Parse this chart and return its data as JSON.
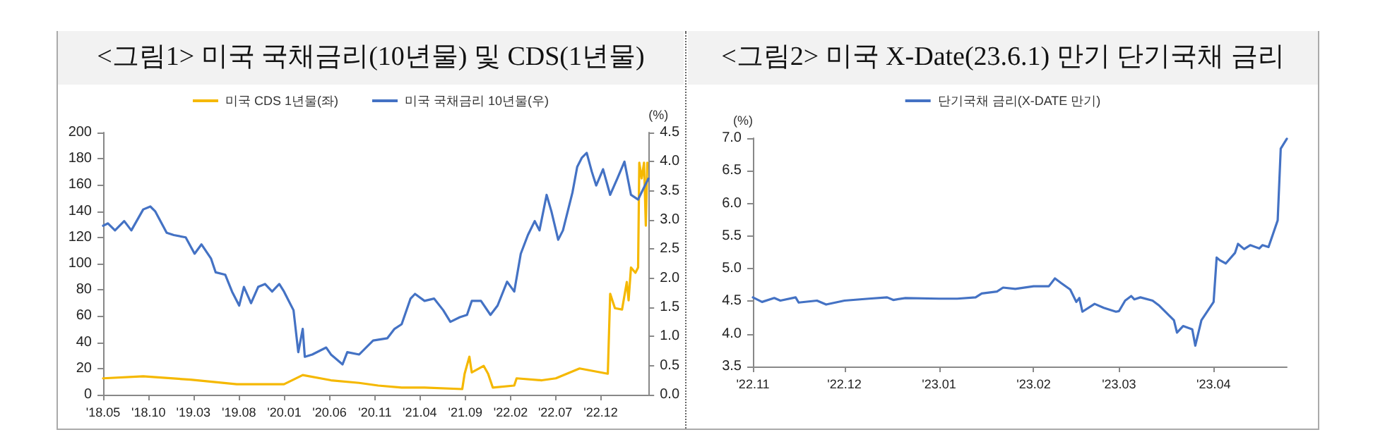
{
  "chart_data": [
    {
      "type": "line",
      "title": "<그림1> 미국 국채금리(10년물) 및 CDS(1년물)",
      "y2label": "(%)",
      "legend": "top",
      "marker": "none",
      "grid": false,
      "line_style": "solid",
      "xlim": [
        "2018-05-01",
        "2023-05-11"
      ],
      "xticks": [
        {
          "value": "2018-05-01",
          "label": "'18.05"
        },
        {
          "value": "2018-10-01",
          "label": "'18.10"
        },
        {
          "value": "2019-03-01",
          "label": "'19.03"
        },
        {
          "value": "2019-08-01",
          "label": "'19.08"
        },
        {
          "value": "2020-01-01",
          "label": "'20.01"
        },
        {
          "value": "2020-06-01",
          "label": "'20.06"
        },
        {
          "value": "2020-11-01",
          "label": "'20.11"
        },
        {
          "value": "2021-04-01",
          "label": "'21.04"
        },
        {
          "value": "2021-09-01",
          "label": "'21.09"
        },
        {
          "value": "2022-02-01",
          "label": "'22.02"
        },
        {
          "value": "2022-07-01",
          "label": "'22.07"
        },
        {
          "value": "2022-12-01",
          "label": "'22.12"
        }
      ],
      "ylim": [
        0,
        200
      ],
      "yticks": [
        0,
        20,
        40,
        60,
        80,
        100,
        120,
        140,
        160,
        180,
        200
      ],
      "y2lim": [
        0,
        4.5
      ],
      "y2ticks": [
        {
          "value": 0,
          "label": "0.0"
        },
        0.5,
        {
          "value": 1,
          "label": "1.0"
        },
        1.5,
        {
          "value": 2,
          "label": "2.0"
        },
        2.5,
        {
          "value": 3,
          "label": "3.0"
        },
        3.5,
        {
          "value": 4,
          "label": "4.0"
        },
        4.5
      ],
      "series": [
        {
          "name": "미국 CDS 1년물(좌)",
          "color": "#f5b800",
          "x": [
            "2018-05-01",
            "2018-09-13",
            "2019-02-19",
            "2019-07-25",
            "2019-12-31",
            "2020-03-03",
            "2020-06-06",
            "2020-09-09",
            "2020-11-12",
            "2021-01-30",
            "2021-04-17",
            "2021-08-22",
            "2021-08-30",
            "2021-09-15",
            "2021-09-23",
            "2021-11-02",
            "2021-11-17",
            "2021-12-03",
            "2022-02-13",
            "2022-02-21",
            "2022-05-17",
            "2022-07-03",
            "2022-09-21",
            "2022-12-25",
            "2023-01-02",
            "2023-01-18",
            "2023-02-11",
            "2023-02-27",
            "2023-03-05",
            "2023-03-13",
            "2023-03-28",
            "2023-04-06",
            "2023-04-10",
            "2023-04-18",
            "2023-04-26",
            "2023-05-02",
            "2023-05-07"
          ],
          "values": [
            12.5,
            14,
            11.5,
            8,
            8,
            15,
            11,
            9,
            7,
            5.4,
            5.4,
            4.3,
            16,
            29,
            17,
            22,
            16,
            5.4,
            7,
            12.5,
            11,
            12.5,
            20,
            16,
            77,
            66,
            65,
            86,
            72,
            97,
            93,
            97,
            177,
            165,
            177,
            129,
            177
          ]
        },
        {
          "name": "미국 국채금리 10년물(우)",
          "color": "#4472c4",
          "axis": "y2",
          "x": [
            "2018-05-01",
            "2018-05-17",
            "2018-06-10",
            "2018-07-11",
            "2018-08-04",
            "2018-09-13",
            "2018-10-07",
            "2018-10-23",
            "2018-12-01",
            "2018-12-25",
            "2019-02-03",
            "2019-03-05",
            "2019-03-28",
            "2019-04-29",
            "2019-05-15",
            "2019-06-16",
            "2019-07-09",
            "2019-08-02",
            "2019-08-18",
            "2019-09-11",
            "2019-10-05",
            "2019-10-28",
            "2019-11-21",
            "2019-12-15",
            "2019-12-31",
            "2020-01-16",
            "2020-02-01",
            "2020-02-17",
            "2020-03-03",
            "2020-03-10",
            "2020-04-04",
            "2020-05-21",
            "2020-06-06",
            "2020-07-15",
            "2020-07-31",
            "2020-09-09",
            "2020-10-26",
            "2020-12-13",
            "2021-01-06",
            "2021-01-30",
            "2021-03-01",
            "2021-03-16",
            "2021-04-17",
            "2021-05-19",
            "2021-06-19",
            "2021-07-13",
            "2021-08-14",
            "2021-09-07",
            "2021-09-23",
            "2021-10-24",
            "2021-11-25",
            "2021-12-19",
            "2022-01-20",
            "2022-02-13",
            "2022-03-07",
            "2022-03-31",
            "2022-04-23",
            "2022-05-09",
            "2022-06-02",
            "2022-06-18",
            "2022-07-11",
            "2022-07-27",
            "2022-08-28",
            "2022-09-13",
            "2022-09-29",
            "2022-10-15",
            "2022-11-01",
            "2022-11-16",
            "2022-12-09",
            "2023-01-02",
            "2023-01-26",
            "2023-02-19",
            "2023-03-13",
            "2023-04-06",
            "2023-04-29",
            "2023-05-11"
          ],
          "values": [
            2.9,
            2.94,
            2.82,
            2.98,
            2.82,
            3.18,
            3.23,
            3.15,
            2.78,
            2.74,
            2.7,
            2.42,
            2.58,
            2.34,
            2.1,
            2.06,
            1.77,
            1.53,
            1.85,
            1.57,
            1.85,
            1.9,
            1.77,
            1.9,
            1.77,
            1.61,
            1.45,
            0.73,
            1.13,
            0.65,
            0.69,
            0.81,
            0.69,
            0.52,
            0.73,
            0.69,
            0.93,
            0.97,
            1.13,
            1.21,
            1.65,
            1.73,
            1.61,
            1.65,
            1.45,
            1.25,
            1.33,
            1.37,
            1.61,
            1.61,
            1.37,
            1.53,
            1.94,
            1.77,
            2.42,
            2.74,
            2.98,
            2.82,
            3.43,
            3.15,
            2.66,
            2.82,
            3.47,
            3.91,
            4.07,
            4.15,
            3.83,
            3.59,
            3.87,
            3.43,
            3.71,
            4.0,
            3.43,
            3.35,
            3.59,
            3.71
          ]
        }
      ]
    },
    {
      "type": "line",
      "title": "<그림2> 미국 X-Date(23.6.1) 만기 단기국채 금리",
      "ylabel": "(%)",
      "legend": "top",
      "marker": "none",
      "grid": false,
      "line_style": "solid",
      "xlim": [
        "2022-11-01",
        "2023-04-25"
      ],
      "xticks": [
        {
          "value": "2022-11-01",
          "label": "'22.11"
        },
        {
          "value": "2022-12-01",
          "label": "'22.12"
        },
        {
          "value": "2023-01-01",
          "label": "'23.01"
        },
        {
          "value": "2023-02-01",
          "label": "'23.02"
        },
        {
          "value": "2023-03-01",
          "label": "'23.03"
        },
        {
          "value": "2023-04-01",
          "label": "'23.04"
        }
      ],
      "ylim": [
        3.5,
        7.0
      ],
      "yticks": [
        3.5,
        {
          "value": 4,
          "label": "4.0"
        },
        4.5,
        {
          "value": 5,
          "label": "5.0"
        },
        5.5,
        {
          "value": 6,
          "label": "6.0"
        },
        6.5,
        {
          "value": 7,
          "label": "7.0"
        }
      ],
      "series": [
        {
          "name": "단기국채 금리(X-DATE 만기)",
          "color": "#4472c4",
          "x": [
            "2022-11-01",
            "2022-11-04",
            "2022-11-08",
            "2022-11-10",
            "2022-11-15",
            "2022-11-16",
            "2022-11-22",
            "2022-11-25",
            "2022-12-01",
            "2022-12-09",
            "2022-12-15",
            "2022-12-17",
            "2022-12-21",
            "2023-01-01",
            "2023-01-07",
            "2023-01-13",
            "2023-01-15",
            "2023-01-20",
            "2023-01-22",
            "2023-01-26",
            "2023-02-01",
            "2023-02-06",
            "2023-02-08",
            "2023-02-10",
            "2023-02-13",
            "2023-02-15",
            "2023-02-16",
            "2023-02-17",
            "2023-02-21",
            "2023-02-24",
            "2023-02-28",
            "2023-03-01",
            "2023-03-03",
            "2023-03-05",
            "2023-03-06",
            "2023-03-08",
            "2023-03-12",
            "2023-03-14",
            "2023-03-19",
            "2023-03-20",
            "2023-03-22",
            "2023-03-25",
            "2023-03-26",
            "2023-03-28",
            "2023-04-01",
            "2023-04-02",
            "2023-04-03",
            "2023-04-05",
            "2023-04-08",
            "2023-04-09",
            "2023-04-11",
            "2023-04-13",
            "2023-04-16",
            "2023-04-17",
            "2023-04-19",
            "2023-04-22",
            "2023-04-23",
            "2023-04-25"
          ],
          "values": [
            4.56,
            4.49,
            4.55,
            4.51,
            4.56,
            4.48,
            4.51,
            4.45,
            4.51,
            4.54,
            4.56,
            4.52,
            4.55,
            4.54,
            4.54,
            4.56,
            4.62,
            4.65,
            4.71,
            4.69,
            4.73,
            4.73,
            4.85,
            4.78,
            4.68,
            4.49,
            4.55,
            4.34,
            4.46,
            4.4,
            4.34,
            4.35,
            4.51,
            4.58,
            4.53,
            4.56,
            4.51,
            4.44,
            4.21,
            4.02,
            4.12,
            4.07,
            3.82,
            4.21,
            4.49,
            5.17,
            5.13,
            5.08,
            5.24,
            5.38,
            5.3,
            5.36,
            5.31,
            5.36,
            5.33,
            5.74,
            6.84,
            6.99
          ]
        }
      ]
    }
  ]
}
